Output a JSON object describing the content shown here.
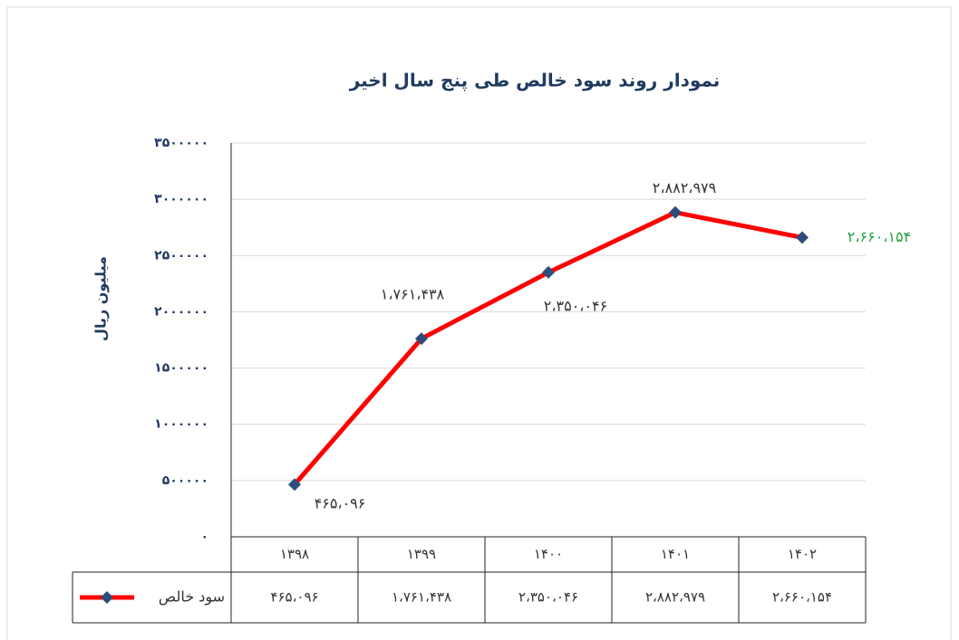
{
  "chart_data": {
    "type": "line",
    "title": "نمودار روند سود خالص طی پنج سال اخیر",
    "y_label": "میلیون ریال",
    "categories": [
      "۱۳۹۸",
      "۱۳۹۹",
      "۱۴۰۰",
      "۱۴۰۱",
      "۱۴۰۲"
    ],
    "series": [
      {
        "name": "سود خالص",
        "color": "#ff0000",
        "marker_color": "#2e4d7b",
        "values": [
          465096,
          1761438,
          2350046,
          2882979,
          2660154
        ],
        "value_labels": [
          "۴۶۵،۰۹۶",
          "۱،۷۶۱،۴۳۸",
          "۲،۳۵۰،۰۴۶",
          "۲،۸۸۲،۹۷۹",
          "۲،۶۶۰،۱۵۴"
        ]
      }
    ],
    "ylim": [
      0,
      3500000
    ],
    "yticks": [
      {
        "value": 0,
        "label": "۰"
      },
      {
        "value": 500000,
        "label": "۵۰۰۰۰۰"
      },
      {
        "value": 1000000,
        "label": "۱۰۰۰۰۰۰"
      },
      {
        "value": 1500000,
        "label": "۱۵۰۰۰۰۰"
      },
      {
        "value": 2000000,
        "label": "۲۰۰۰۰۰۰"
      },
      {
        "value": 2500000,
        "label": "۲۵۰۰۰۰۰"
      },
      {
        "value": 3000000,
        "label": "۳۰۰۰۰۰۰"
      },
      {
        "value": 3500000,
        "label": "۳۵۰۰۰۰۰"
      }
    ],
    "grid": true,
    "data_table": true
  }
}
